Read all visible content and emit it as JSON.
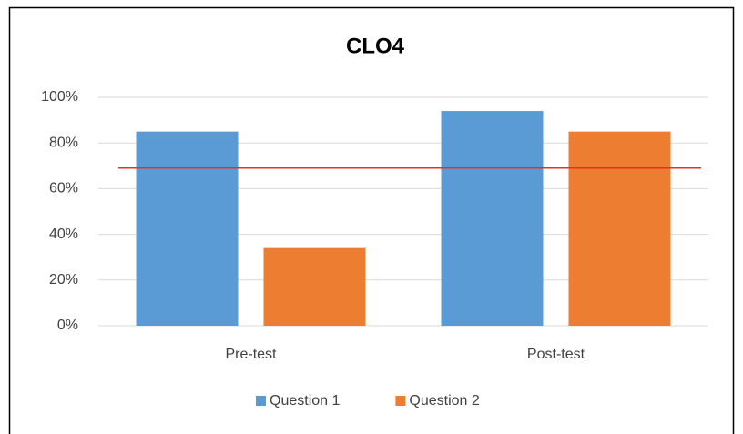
{
  "chart_data": {
    "type": "bar",
    "title": "CLO4",
    "categories": [
      "Pre-test",
      "Post-test"
    ],
    "series": [
      {
        "name": "Question 1",
        "color": "#5b9bd5",
        "values": [
          85,
          94
        ]
      },
      {
        "name": "Question 2",
        "color": "#ed7d31",
        "values": [
          34,
          85
        ]
      }
    ],
    "reference_line": {
      "value": 69,
      "color": "#e8301c"
    },
    "ylim": [
      0,
      100
    ],
    "yticks": [
      {
        "value": 0,
        "label": "0%"
      },
      {
        "value": 20,
        "label": "20%"
      },
      {
        "value": 40,
        "label": "40%"
      },
      {
        "value": 60,
        "label": "60%"
      },
      {
        "value": 80,
        "label": "80%"
      },
      {
        "value": 100,
        "label": "100%"
      }
    ],
    "grid": true,
    "legend": "bottom"
  }
}
